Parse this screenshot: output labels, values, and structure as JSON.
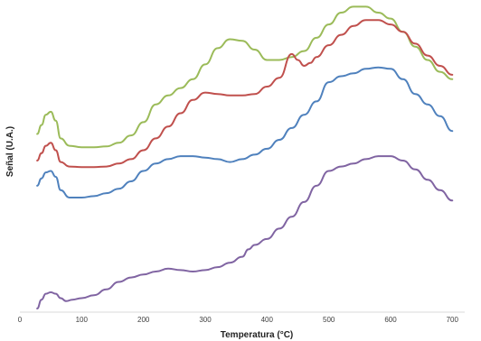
{
  "chart_data": {
    "type": "line",
    "title": "",
    "xlabel": "Temperatura (°C)",
    "ylabel": "Señal (U.A.)",
    "xlim": [
      0,
      720
    ],
    "ylim": [
      0,
      1
    ],
    "x_ticks": [
      0,
      100,
      200,
      300,
      400,
      500,
      600,
      700
    ],
    "y_ticks": [],
    "grid": false,
    "legend": "none",
    "series": [
      {
        "color": "#9bbb59",
        "points": [
          [
            28,
            0.59
          ],
          [
            35,
            0.62
          ],
          [
            42,
            0.655
          ],
          [
            50,
            0.665
          ],
          [
            58,
            0.635
          ],
          [
            66,
            0.575
          ],
          [
            80,
            0.55
          ],
          [
            100,
            0.545
          ],
          [
            120,
            0.545
          ],
          [
            140,
            0.548
          ],
          [
            160,
            0.56
          ],
          [
            180,
            0.585
          ],
          [
            200,
            0.63
          ],
          [
            220,
            0.69
          ],
          [
            240,
            0.72
          ],
          [
            260,
            0.745
          ],
          [
            280,
            0.775
          ],
          [
            300,
            0.825
          ],
          [
            320,
            0.88
          ],
          [
            340,
            0.91
          ],
          [
            360,
            0.905
          ],
          [
            380,
            0.875
          ],
          [
            400,
            0.84
          ],
          [
            420,
            0.84
          ],
          [
            440,
            0.85
          ],
          [
            460,
            0.87
          ],
          [
            480,
            0.915
          ],
          [
            500,
            0.96
          ],
          [
            520,
            1.0
          ],
          [
            540,
            1.02
          ],
          [
            560,
            1.02
          ],
          [
            580,
            1.0
          ],
          [
            600,
            0.98
          ],
          [
            620,
            0.935
          ],
          [
            640,
            0.885
          ],
          [
            660,
            0.84
          ],
          [
            680,
            0.8
          ],
          [
            700,
            0.775
          ]
        ]
      },
      {
        "color": "#c0504d",
        "points": [
          [
            28,
            0.5
          ],
          [
            35,
            0.525
          ],
          [
            42,
            0.55
          ],
          [
            50,
            0.56
          ],
          [
            58,
            0.535
          ],
          [
            66,
            0.495
          ],
          [
            80,
            0.48
          ],
          [
            100,
            0.478
          ],
          [
            120,
            0.478
          ],
          [
            140,
            0.48
          ],
          [
            160,
            0.49
          ],
          [
            180,
            0.505
          ],
          [
            200,
            0.535
          ],
          [
            220,
            0.575
          ],
          [
            240,
            0.615
          ],
          [
            260,
            0.66
          ],
          [
            280,
            0.705
          ],
          [
            300,
            0.73
          ],
          [
            320,
            0.725
          ],
          [
            340,
            0.72
          ],
          [
            360,
            0.72
          ],
          [
            380,
            0.725
          ],
          [
            400,
            0.75
          ],
          [
            420,
            0.78
          ],
          [
            440,
            0.86
          ],
          [
            450,
            0.84
          ],
          [
            460,
            0.82
          ],
          [
            470,
            0.83
          ],
          [
            480,
            0.85
          ],
          [
            500,
            0.89
          ],
          [
            520,
            0.925
          ],
          [
            540,
            0.955
          ],
          [
            560,
            0.975
          ],
          [
            580,
            0.975
          ],
          [
            600,
            0.96
          ],
          [
            620,
            0.935
          ],
          [
            640,
            0.895
          ],
          [
            660,
            0.855
          ],
          [
            680,
            0.82
          ],
          [
            700,
            0.79
          ]
        ]
      },
      {
        "color": "#4f81bd",
        "points": [
          [
            28,
            0.415
          ],
          [
            35,
            0.44
          ],
          [
            42,
            0.46
          ],
          [
            50,
            0.465
          ],
          [
            58,
            0.445
          ],
          [
            66,
            0.4
          ],
          [
            80,
            0.375
          ],
          [
            100,
            0.375
          ],
          [
            120,
            0.38
          ],
          [
            140,
            0.39
          ],
          [
            160,
            0.405
          ],
          [
            180,
            0.43
          ],
          [
            200,
            0.465
          ],
          [
            220,
            0.49
          ],
          [
            240,
            0.505
          ],
          [
            260,
            0.515
          ],
          [
            280,
            0.515
          ],
          [
            300,
            0.51
          ],
          [
            320,
            0.505
          ],
          [
            340,
            0.495
          ],
          [
            360,
            0.505
          ],
          [
            380,
            0.52
          ],
          [
            400,
            0.54
          ],
          [
            420,
            0.57
          ],
          [
            440,
            0.61
          ],
          [
            460,
            0.655
          ],
          [
            480,
            0.7
          ],
          [
            500,
            0.765
          ],
          [
            520,
            0.785
          ],
          [
            540,
            0.795
          ],
          [
            560,
            0.81
          ],
          [
            580,
            0.815
          ],
          [
            600,
            0.81
          ],
          [
            620,
            0.775
          ],
          [
            640,
            0.725
          ],
          [
            660,
            0.69
          ],
          [
            680,
            0.65
          ],
          [
            700,
            0.6
          ]
        ]
      },
      {
        "color": "#8064a2",
        "points": [
          [
            28,
            0.0
          ],
          [
            35,
            0.03
          ],
          [
            42,
            0.05
          ],
          [
            50,
            0.055
          ],
          [
            58,
            0.05
          ],
          [
            66,
            0.035
          ],
          [
            75,
            0.025
          ],
          [
            85,
            0.03
          ],
          [
            100,
            0.035
          ],
          [
            120,
            0.045
          ],
          [
            140,
            0.065
          ],
          [
            160,
            0.09
          ],
          [
            180,
            0.105
          ],
          [
            200,
            0.115
          ],
          [
            220,
            0.125
          ],
          [
            240,
            0.135
          ],
          [
            260,
            0.13
          ],
          [
            280,
            0.125
          ],
          [
            300,
            0.13
          ],
          [
            320,
            0.14
          ],
          [
            340,
            0.155
          ],
          [
            360,
            0.175
          ],
          [
            370,
            0.2
          ],
          [
            380,
            0.215
          ],
          [
            400,
            0.235
          ],
          [
            420,
            0.27
          ],
          [
            440,
            0.31
          ],
          [
            460,
            0.36
          ],
          [
            480,
            0.415
          ],
          [
            500,
            0.465
          ],
          [
            520,
            0.48
          ],
          [
            540,
            0.49
          ],
          [
            560,
            0.505
          ],
          [
            580,
            0.515
          ],
          [
            600,
            0.515
          ],
          [
            620,
            0.5
          ],
          [
            640,
            0.47
          ],
          [
            660,
            0.435
          ],
          [
            680,
            0.4
          ],
          [
            700,
            0.365
          ]
        ]
      }
    ]
  }
}
